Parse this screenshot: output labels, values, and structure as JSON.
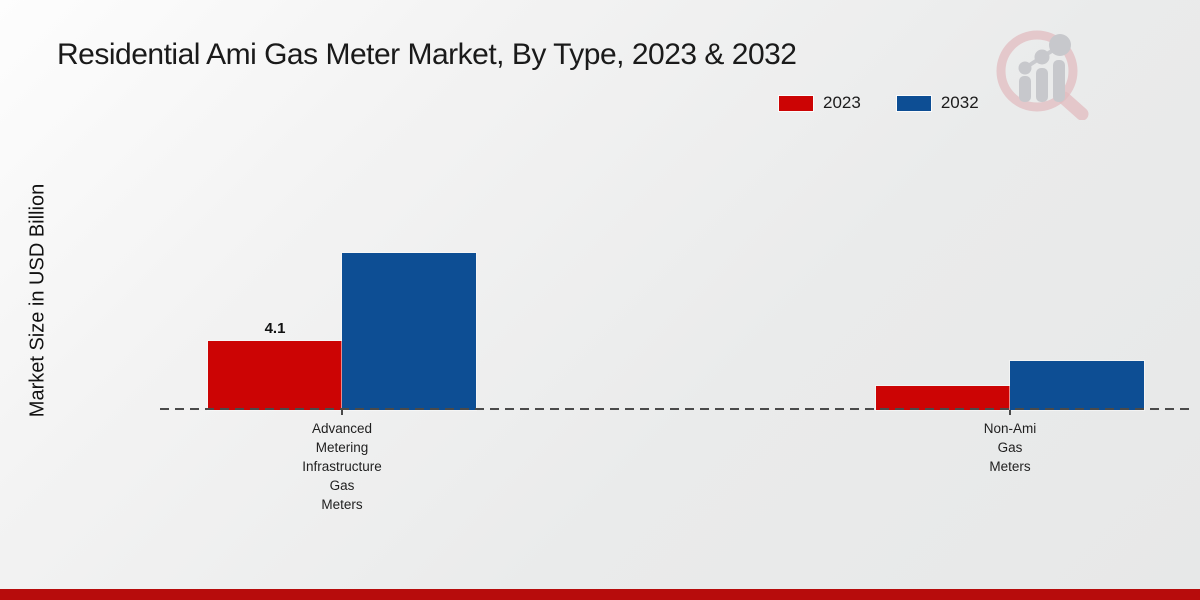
{
  "page": {
    "footer_stripe_color": "#b70c0c",
    "logo_icon": "magnifier-bar-chart-logo"
  },
  "legend": {
    "position": "top-right",
    "items": [
      {
        "label": "2023",
        "color": "#cc0404"
      },
      {
        "label": "2032",
        "color": "#0d4e94"
      }
    ]
  },
  "chart_data": {
    "type": "bar",
    "title": "Residential Ami Gas Meter Market, By Type, 2023 & 2032",
    "xlabel": "",
    "ylabel": "Market Size in USD Billion",
    "ylim": [
      0,
      10.5
    ],
    "grid": false,
    "legend_position": "top-right",
    "baseline_style": "dashed",
    "categories": [
      [
        "Advanced",
        "Metering",
        "Infrastructure",
        "Gas",
        "Meters"
      ],
      [
        "Non-Ami",
        "Gas",
        "Meters"
      ]
    ],
    "series": [
      {
        "name": "2023",
        "color": "#cc0404",
        "values": [
          4.1,
          1.4
        ],
        "value_labels": [
          "4.1",
          null
        ]
      },
      {
        "name": "2032",
        "color": "#0d4e94",
        "values": [
          9.3,
          2.9
        ],
        "value_labels": [
          null,
          null
        ]
      }
    ]
  }
}
